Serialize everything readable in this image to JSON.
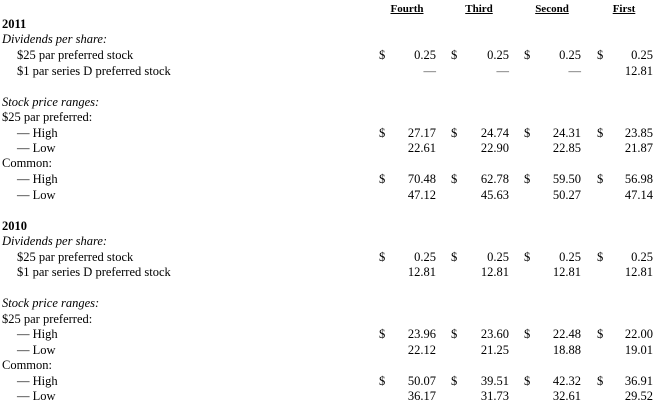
{
  "header": {
    "q4": "Fourth",
    "q3": "Third",
    "q2": "Second",
    "q1": "First"
  },
  "sections": [
    {
      "year": "2011",
      "dividends_heading": "Dividends per share:",
      "pref25_label": "$25 par preferred stock",
      "pref25": {
        "q4": "0.25",
        "q3": "0.25",
        "q2": "0.25",
        "q1": "0.25"
      },
      "seriesD_label": "$1 par series D preferred stock",
      "seriesD": {
        "q4": "—",
        "q3": "—",
        "q2": "—",
        "q1": "12.81"
      },
      "stock_heading": "Stock price ranges:",
      "pref_heading": "$25 par preferred:",
      "pref_high_label": "— High",
      "pref_high": {
        "q4": "27.17",
        "q3": "24.74",
        "q2": "24.31",
        "q1": "23.85"
      },
      "pref_low_label": "— Low",
      "pref_low": {
        "q4": "22.61",
        "q3": "22.90",
        "q2": "22.85",
        "q1": "21.87"
      },
      "common_heading": "Common:",
      "common_high_label": "— High",
      "common_high": {
        "q4": "70.48",
        "q3": "62.78",
        "q2": "59.50",
        "q1": "56.98"
      },
      "common_low_label": "— Low",
      "common_low": {
        "q4": "47.12",
        "q3": "45.63",
        "q2": "50.27",
        "q1": "47.14"
      }
    },
    {
      "year": "2010",
      "dividends_heading": "Dividends per share:",
      "pref25_label": "$25 par preferred stock",
      "pref25": {
        "q4": "0.25",
        "q3": "0.25",
        "q2": "0.25",
        "q1": "0.25"
      },
      "seriesD_label": "$1 par series D preferred stock",
      "seriesD": {
        "q4": "12.81",
        "q3": "12.81",
        "q2": "12.81",
        "q1": "12.81"
      },
      "stock_heading": "Stock price ranges:",
      "pref_heading": "$25 par preferred:",
      "pref_high_label": "— High",
      "pref_high": {
        "q4": "23.96",
        "q3": "23.60",
        "q2": "22.48",
        "q1": "22.00"
      },
      "pref_low_label": "— Low",
      "pref_low": {
        "q4": "22.12",
        "q3": "21.25",
        "q2": "18.88",
        "q1": "19.01"
      },
      "common_heading": "Common:",
      "common_high_label": "— High",
      "common_high": {
        "q4": "50.07",
        "q3": "39.51",
        "q2": "42.32",
        "q1": "36.91"
      },
      "common_low_label": "— Low",
      "common_low": {
        "q4": "36.17",
        "q3": "31.73",
        "q2": "32.61",
        "q1": "29.52"
      }
    }
  ],
  "currency_symbol": "$"
}
